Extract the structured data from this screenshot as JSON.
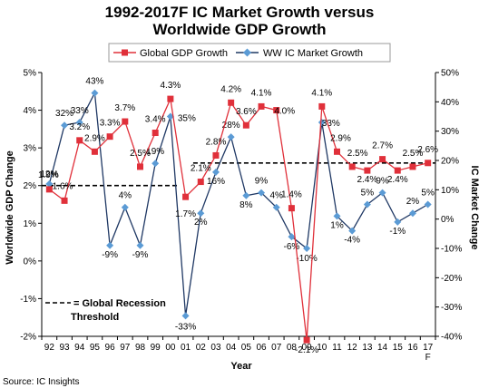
{
  "chart_data": {
    "type": "line",
    "title_lines": [
      "1992-2017F IC Market Growth versus",
      "Worldwide GDP Growth"
    ],
    "xlabel": "Year",
    "ylabel_left": "Worldwide GDP Change",
    "ylabel_right": "IC Market Change",
    "categories": [
      "92",
      "93",
      "94",
      "95",
      "96",
      "97",
      "98",
      "99",
      "00",
      "01",
      "02",
      "03",
      "04",
      "05",
      "06",
      "07",
      "08",
      "09",
      "10",
      "11",
      "12",
      "13",
      "14",
      "15",
      "16",
      "17"
    ],
    "category_suffix": {
      "25": "F"
    },
    "left_axis": {
      "min": -2,
      "max": 5,
      "step": 1,
      "tick_labels": [
        "-2%",
        "-1%",
        "0%",
        "1%",
        "2%",
        "3%",
        "4%",
        "5%"
      ]
    },
    "right_axis": {
      "min": -40,
      "max": 50,
      "step": 10,
      "tick_labels": [
        "-40%",
        "-30%",
        "-20%",
        "-10%",
        "0%",
        "10%",
        "20%",
        "30%",
        "40%",
        "50%"
      ]
    },
    "legend_position": "top",
    "series": [
      {
        "name": "Global GDP Growth",
        "axis": "left",
        "color": "#e0303a",
        "marker": "square",
        "values": [
          1.9,
          1.6,
          3.2,
          2.9,
          3.3,
          3.7,
          2.5,
          3.4,
          4.3,
          1.7,
          2.1,
          2.8,
          4.2,
          3.6,
          4.1,
          4.0,
          1.4,
          -2.1,
          4.1,
          2.9,
          2.5,
          2.4,
          2.7,
          2.4,
          2.5,
          2.6
        ],
        "labels": [
          "1.9%",
          "1.6%",
          "3.2%",
          "2.9%",
          "3.3%",
          "3.7%",
          "2.5%",
          "3.4%",
          "4.3%",
          "1.7%",
          "2.1%",
          "2.8%",
          "4.2%",
          "3.6%",
          "4.1%",
          "4.0%",
          "1.4%",
          "-2.1%",
          "4.1%",
          "2.9%",
          "2.5%",
          "2.4%",
          "2.7%",
          "2.4%",
          "2.5%",
          "2.6%"
        ]
      },
      {
        "name": "WW IC Market Growth",
        "axis": "right",
        "color": "#5b9bd5",
        "line_color": "#1f3864",
        "marker": "diamond",
        "values": [
          12,
          32,
          33,
          43,
          -9,
          4,
          -9,
          19,
          35,
          -33,
          2,
          16,
          28,
          8,
          9,
          4,
          -6,
          -10,
          33,
          1,
          -4,
          5,
          9,
          -1,
          2,
          5
        ],
        "labels": [
          "12%",
          "32%",
          "33%",
          "43%",
          "-9%",
          "4%",
          "-9%",
          "19%",
          "35%",
          "-33%",
          "2%",
          "16%",
          "28%",
          "8%",
          "9%",
          "4%",
          "-6%",
          "-10%",
          "33%",
          "1%",
          "-4%",
          "5%",
          "9%",
          "-1%",
          "2%",
          "5%"
        ]
      }
    ],
    "threshold_lines": [
      {
        "value": 2.0,
        "x_from": 0,
        "x_to": 8.5
      },
      {
        "value": 2.6,
        "x_from": 9.5,
        "x_to": 25.5
      }
    ],
    "threshold_note": {
      "line1": "= Global Recession",
      "line2": "Threshold"
    },
    "source": "Source: IC Insights"
  }
}
